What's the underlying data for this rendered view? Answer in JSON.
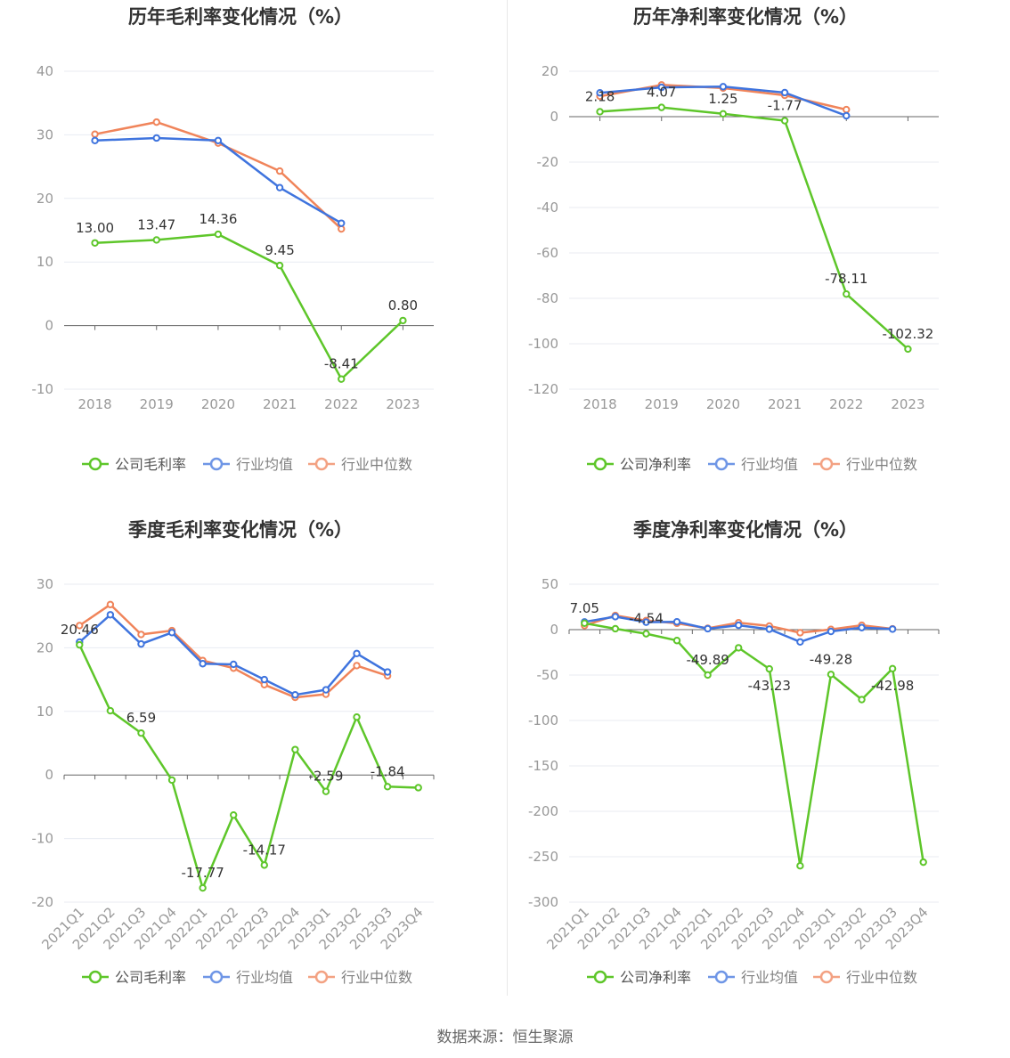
{
  "source": "数据来源：恒生聚源",
  "colors": {
    "company": "#5ec62a",
    "avg": "#3f74de",
    "median": "#f0845a",
    "axis": "#666666",
    "grid": "#e8ebf2"
  },
  "chart_data": [
    {
      "type": "line",
      "title": "历年毛利率变化情况（%）",
      "categories": [
        "2018",
        "2019",
        "2020",
        "2021",
        "2022",
        "2023"
      ],
      "ylim": [
        -10,
        40
      ],
      "yticks": [
        -10,
        0,
        10,
        20,
        30,
        40
      ],
      "x_label_rotate": false,
      "series": [
        {
          "name": "公司毛利率",
          "values": [
            13.0,
            13.47,
            14.36,
            9.45,
            -8.41,
            0.8
          ],
          "labels": [
            "13.00",
            "13.47",
            "14.36",
            "9.45",
            "-8.41",
            "0.80"
          ],
          "label_pos": [
            "above",
            "above",
            "above",
            "above",
            "above",
            "above"
          ]
        },
        {
          "name": "行业均值",
          "values": [
            29.1,
            29.5,
            29.1,
            21.7,
            16.1,
            null
          ]
        },
        {
          "name": "行业中位数",
          "values": [
            30.1,
            32.0,
            28.7,
            24.3,
            15.2,
            null
          ]
        }
      ],
      "legend": "bottom"
    },
    {
      "type": "line",
      "title": "历年净利率变化情况（%）",
      "categories": [
        "2018",
        "2019",
        "2020",
        "2021",
        "2022",
        "2023"
      ],
      "ylim": [
        -120,
        20
      ],
      "yticks": [
        -120,
        -100,
        -80,
        -60,
        -40,
        -20,
        0,
        20
      ],
      "x_label_rotate": false,
      "series": [
        {
          "name": "公司净利率",
          "values": [
            2.18,
            4.07,
            1.25,
            -1.77,
            -78.11,
            -102.32
          ],
          "labels": [
            "2.18",
            "4.07",
            "1.25",
            "-1.77",
            "-78.11",
            "-102.32"
          ],
          "label_pos": [
            "above",
            "above",
            "above",
            "above",
            "above",
            "above"
          ]
        },
        {
          "name": "行业均值",
          "values": [
            10.5,
            12.9,
            13.2,
            10.6,
            0.4,
            null
          ]
        },
        {
          "name": "行业中位数",
          "values": [
            9.0,
            14.0,
            12.6,
            9.4,
            3.1,
            null
          ]
        }
      ],
      "legend": "bottom"
    },
    {
      "type": "line",
      "title": "季度毛利率变化情况（%）",
      "categories": [
        "2021Q1",
        "2021Q2",
        "2021Q3",
        "2021Q4",
        "2022Q1",
        "2022Q2",
        "2022Q3",
        "2022Q4",
        "2023Q1",
        "2023Q2",
        "2023Q3",
        "2023Q4"
      ],
      "ylim": [
        -20,
        30
      ],
      "yticks": [
        -20,
        -10,
        0,
        10,
        20,
        30
      ],
      "x_label_rotate": true,
      "series": [
        {
          "name": "公司毛利率",
          "values": [
            20.46,
            10.1,
            6.59,
            -0.8,
            -17.77,
            -6.3,
            -14.17,
            4.0,
            -2.59,
            9.1,
            -1.84,
            -2.0
          ],
          "labels": [
            "20.46",
            "",
            "6.59",
            "",
            "-17.77",
            "",
            "-14.17",
            "",
            "-2.59",
            "",
            "-1.84",
            ""
          ],
          "label_pos": [
            "above",
            "above",
            "above",
            "above",
            "above",
            "above",
            "above",
            "above",
            "above",
            "above",
            "above",
            "above"
          ]
        },
        {
          "name": "行业均值",
          "values": [
            20.9,
            25.2,
            20.6,
            22.4,
            17.5,
            17.4,
            15.0,
            12.6,
            13.4,
            19.1,
            16.2,
            null
          ]
        },
        {
          "name": "行业中位数",
          "values": [
            23.5,
            26.8,
            22.1,
            22.7,
            18.0,
            16.8,
            14.2,
            12.2,
            12.7,
            17.2,
            15.6,
            null
          ]
        }
      ],
      "legend": "bottom"
    },
    {
      "type": "line",
      "title": "季度净利率变化情况（%）",
      "categories": [
        "2021Q1",
        "2021Q2",
        "2021Q3",
        "2021Q4",
        "2022Q1",
        "2022Q2",
        "2022Q3",
        "2022Q4",
        "2023Q1",
        "2023Q2",
        "2023Q3",
        "2023Q4"
      ],
      "ylim": [
        -300,
        50
      ],
      "yticks": [
        -300,
        -250,
        -200,
        -150,
        -100,
        -50,
        0,
        50
      ],
      "x_label_rotate": true,
      "series": [
        {
          "name": "公司净利率",
          "values": [
            7.05,
            1.0,
            -4.54,
            -12.0,
            -49.89,
            -20.0,
            -43.23,
            -260.0,
            -49.28,
            -77.0,
            -42.98,
            -256.0
          ],
          "labels": [
            "7.05",
            "",
            "-4.54",
            "",
            "-49.89",
            "",
            "-43.23",
            "",
            "-49.28",
            "",
            "-42.98",
            ""
          ],
          "label_pos": [
            "above",
            "above",
            "above",
            "above",
            "above",
            "above",
            "below",
            "above",
            "above",
            "above",
            "below",
            "above"
          ]
        },
        {
          "name": "行业均值",
          "values": [
            8.5,
            14.3,
            8.2,
            8.6,
            1.0,
            4.8,
            0.5,
            -13.5,
            -2.0,
            2.2,
            0.6,
            null
          ]
        },
        {
          "name": "行业中位数",
          "values": [
            4.5,
            15.6,
            10.0,
            7.0,
            1.5,
            7.6,
            4.0,
            -3.4,
            0.3,
            4.8,
            0.9,
            null
          ]
        }
      ],
      "legend": "bottom"
    }
  ]
}
